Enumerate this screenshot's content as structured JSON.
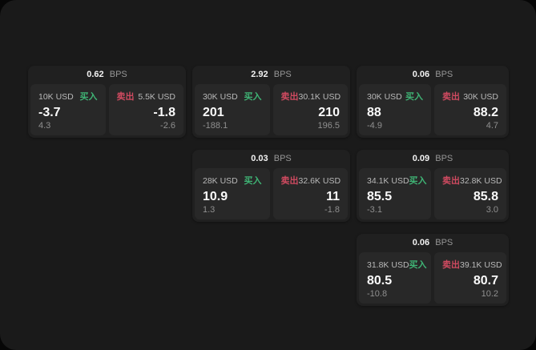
{
  "labels": {
    "bps_suffix": "BPS",
    "buy": "买入",
    "sell": "卖出"
  },
  "colors": {
    "background": "#060606",
    "window": "#1a1a1a",
    "card": "#202020",
    "panel": "#282828",
    "buy_green": "#3fb475",
    "sell_red": "#cf4a60",
    "price_text": "#fafafa",
    "muted_text": "#8f8f8f"
  },
  "cards": [
    {
      "bps": "0.62",
      "row": 1,
      "col": 1,
      "buy": {
        "size": "10K USD",
        "price": "-3.7",
        "delta": "4.3"
      },
      "sell": {
        "size": "5.5K USD",
        "price": "-1.8",
        "delta": "-2.6"
      }
    },
    {
      "bps": "2.92",
      "row": 1,
      "col": 2,
      "buy": {
        "size": "30K USD",
        "price": "201",
        "delta": "-188.1"
      },
      "sell": {
        "size": "30.1K USD",
        "price": "210",
        "delta": "196.5"
      }
    },
    {
      "bps": "0.06",
      "row": 1,
      "col": 3,
      "buy": {
        "size": "30K USD",
        "price": "88",
        "delta": "-4.9"
      },
      "sell": {
        "size": "30K USD",
        "price": "88.2",
        "delta": "4.7"
      }
    },
    {
      "bps": "0.03",
      "row": 2,
      "col": 2,
      "buy": {
        "size": "28K USD",
        "price": "10.9",
        "delta": "1.3"
      },
      "sell": {
        "size": "32.6K USD",
        "price": "11",
        "delta": "-1.8"
      }
    },
    {
      "bps": "0.09",
      "row": 2,
      "col": 3,
      "buy": {
        "size": "34.1K USD",
        "price": "85.5",
        "delta": "-3.1"
      },
      "sell": {
        "size": "32.8K USD",
        "price": "85.8",
        "delta": "3.0"
      }
    },
    {
      "bps": "0.06",
      "row": 3,
      "col": 3,
      "buy": {
        "size": "31.8K USD",
        "price": "80.5",
        "delta": "-10.8"
      },
      "sell": {
        "size": "39.1K USD",
        "price": "80.7",
        "delta": "10.2"
      }
    }
  ]
}
